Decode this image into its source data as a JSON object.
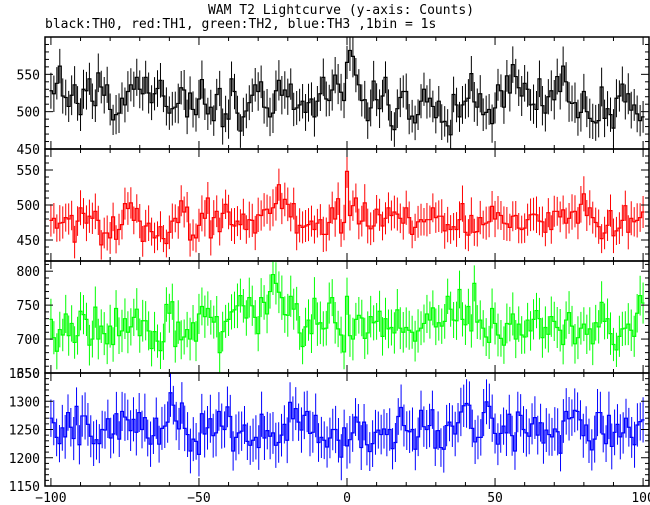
{
  "chart_data": {
    "type": "line",
    "title": "WAM T2 Lightcurve (y-axis: Counts)",
    "subtitle": "black:TH0, red:TH1, green:TH2, blue:TH3 ,1bin = 1s",
    "xlim": [
      -102,
      102
    ],
    "x_ticks": [
      -100,
      -50,
      0,
      50,
      100
    ],
    "grid": false,
    "series": [
      {
        "name": "TH0",
        "color": "#000000",
        "ylim": [
          450,
          600
        ],
        "y_ticks": [
          450,
          500,
          550
        ],
        "values": [
          528,
          524,
          538,
          561,
          521,
          519,
          507,
          522,
          536,
          511,
          496,
          530,
          528,
          544,
          514,
          508,
          552,
          533,
          522,
          536,
          503,
          489,
          496,
          498,
          518,
          509,
          527,
          536,
          530,
          546,
          530,
          524,
          546,
          525,
          512,
          524,
          531,
          542,
          521,
          507,
          498,
          504,
          506,
          511,
          532,
          529,
          493,
          525,
          503,
          496,
          517,
          543,
          510,
          497,
          506,
          488,
          523,
          531,
          480,
          497,
          490,
          544,
          527,
          498,
          474,
          493,
          501,
          512,
          522,
          536,
          527,
          540,
          506,
          505,
          493,
          498,
          528,
          542,
          522,
          529,
          520,
          537,
          503,
          505,
          509,
          514,
          499,
          512,
          517,
          493,
          514,
          524,
          546,
          517,
          515,
          529,
          549,
          537,
          526,
          515,
          566,
          582,
          574,
          549,
          536,
          515,
          516,
          488,
          505,
          541,
          516,
          504,
          521,
          546,
          509,
          481,
          476,
          504,
          519,
          527,
          527,
          490,
          494,
          485,
          496,
          514,
          530,
          513,
          518,
          507,
          492,
          514,
          486,
          487,
          481,
          469,
          523,
          509,
          493,
          509,
          514,
          518,
          551,
          513,
          506,
          524,
          496,
          499,
          503,
          484,
          505,
          536,
          528,
          506,
          548,
          525,
          563,
          547,
          532,
          521,
          538,
          530,
          509,
          510,
          503,
          544,
          508,
          498,
          520,
          528,
          516,
          547,
          527,
          561,
          540,
          513,
          511,
          512,
          492,
          499,
          527,
          500,
          491,
          487,
          485,
          488,
          533,
          491,
          504,
          496,
          478,
          518,
          521,
          537,
          513,
          524,
          502,
          509,
          497,
          488,
          493
        ]
      },
      {
        "name": "TH1",
        "color": "#ff0000",
        "ylim": [
          420,
          580
        ],
        "y_ticks": [
          450,
          500,
          550
        ],
        "values": [
          478,
          481,
          467,
          474,
          475,
          482,
          480,
          485,
          447,
          477,
          496,
          488,
          474,
          484,
          481,
          491,
          478,
          443,
          460,
          460,
          453,
          483,
          451,
          465,
          472,
          502,
          495,
          503,
          478,
          495,
          477,
          448,
          470,
          474,
          462,
          453,
          456,
          469,
          452,
          445,
          461,
          477,
          481,
          475,
          506,
          490,
          497,
          450,
          457,
          453,
          471,
          488,
          481,
          510,
          453,
          482,
          491,
          462,
          488,
          501,
          490,
          472,
          470,
          477,
          472,
          487,
          465,
          479,
          478,
          460,
          486,
          485,
          493,
          494,
          488,
          496,
          502,
          529,
          495,
          508,
          501,
          483,
          502,
          460,
          471,
          468,
          470,
          472,
          477,
          465,
          474,
          479,
          458,
          458,
          475,
          496,
          480,
          509,
          460,
          475,
          548,
          485,
          499,
          510,
          473,
          477,
          503,
          470,
          466,
          470,
          494,
          486,
          470,
          481,
          496,
          485,
          490,
          487,
          481,
          474,
          496,
          482,
          458,
          468,
          476,
          479,
          476,
          479,
          479,
          496,
          482,
          484,
          484,
          463,
          472,
          465,
          469,
          465,
          479,
          502,
          461,
          457,
          485,
          461,
          462,
          482,
          472,
          474,
          476,
          498,
          480,
          489,
          485,
          474,
          473,
          468,
          484,
          485,
          467,
          465,
          467,
          479,
          486,
          487,
          486,
          477,
          476,
          461,
          489,
          465,
          491,
          491,
          483,
          493,
          474,
          481,
          490,
          491,
          474,
          501,
          516,
          485,
          496,
          482,
          475,
          469,
          452,
          460,
          471,
          492,
          456,
          463,
          467,
          478,
          499,
          461,
          481,
          476,
          478,
          482,
          490
        ]
      },
      {
        "name": "TH2",
        "color": "#00ff00",
        "ylim": [
          650,
          815
        ],
        "y_ticks": [
          650,
          700,
          750,
          800
        ],
        "values": [
          729,
          702,
          682,
          714,
          706,
          737,
          705,
          723,
          695,
          705,
          741,
          736,
          729,
          691,
          700,
          747,
          700,
          719,
          708,
          693,
          719,
          692,
          745,
          705,
          712,
          730,
          710,
          718,
          732,
          744,
          705,
          727,
          727,
          712,
          686,
          711,
          697,
          683,
          696,
          751,
          738,
          755,
          689,
          725,
          699,
          703,
          714,
          700,
          724,
          697,
          737,
          748,
          733,
          745,
          732,
          725,
          733,
          680,
          711,
          726,
          729,
          740,
          743,
          749,
          764,
          749,
          731,
          761,
          749,
          732,
          708,
          761,
          754,
          737,
          770,
          795,
          782,
          769,
          761,
          736,
          735,
          763,
          744,
          752,
          709,
          689,
          718,
          728,
          708,
          760,
          722,
          724,
          715,
          716,
          753,
          761,
          724,
          715,
          706,
          681,
          763,
          705,
          700,
          729,
          735,
          731,
          701,
          709,
          733,
          724,
          726,
          741,
          704,
          730,
          715,
          717,
          709,
          743,
          716,
          710,
          717,
          713,
          710,
          697,
          712,
          716,
          723,
          737,
          728,
          746,
          718,
          724,
          719,
          726,
          763,
          744,
          728,
          727,
          773,
          729,
          721,
          748,
          712,
          782,
          725,
          728,
          716,
          703,
          695,
          745,
          723,
          706,
          701,
          691,
          723,
          722,
          737,
          700,
          722,
          706,
          703,
          728,
          712,
          729,
          742,
          730,
          702,
          717,
          707,
          733,
          726,
          717,
          713,
          692,
          728,
          739,
          719,
          693,
          702,
          716,
          722,
          707,
          715,
          693,
          724,
          718,
          754,
          726,
          730,
          708,
          692,
          684,
          704,
          715,
          716,
          722,
          713,
          704,
          738,
          764,
          753
        ]
      },
      {
        "name": "TH3",
        "color": "#0000ff",
        "ylim": [
          1150,
          1350
        ],
        "y_ticks": [
          1150,
          1200,
          1250,
          1300,
          1350
        ],
        "values": [
          1270,
          1262,
          1236,
          1225,
          1253,
          1237,
          1280,
          1254,
          1234,
          1291,
          1223,
          1274,
          1274,
          1259,
          1238,
          1225,
          1232,
          1225,
          1250,
          1249,
          1269,
          1235,
          1242,
          1278,
          1233,
          1282,
          1272,
          1267,
          1248,
          1268,
          1245,
          1280,
          1250,
          1271,
          1235,
          1224,
          1239,
          1270,
          1224,
          1252,
          1256,
          1263,
          1315,
          1293,
          1265,
          1251,
          1297,
          1252,
          1241,
          1212,
          1233,
          1229,
          1206,
          1278,
          1242,
          1253,
          1269,
          1239,
          1244,
          1282,
          1256,
          1250,
          1290,
          1273,
          1212,
          1236,
          1244,
          1247,
          1258,
          1229,
          1222,
          1231,
          1236,
          1218,
          1277,
          1235,
          1248,
          1238,
          1244,
          1222,
          1227,
          1240,
          1259,
          1231,
          1298,
          1269,
          1287,
          1263,
          1249,
          1275,
          1282,
          1243,
          1245,
          1275,
          1227,
          1236,
          1231,
          1219,
          1235,
          1250,
          1250,
          1231,
          1201,
          1253,
          1221,
          1232,
          1244,
          1272,
          1263,
          1218,
          1263,
          1223,
          1211,
          1225,
          1245,
          1249,
          1241,
          1251,
          1241,
          1250,
          1216,
          1227,
          1273,
          1289,
          1257,
          1248,
          1246,
          1250,
          1215,
          1237,
          1284,
          1255,
          1250,
          1257,
          1285,
          1217,
          1248,
          1218,
          1215,
          1257,
          1263,
          1256,
          1242,
          1262,
          1281,
          1292,
          1296,
          1293,
          1252,
          1228,
          1236,
          1236,
          1280,
          1299,
          1291,
          1270,
          1243,
          1224,
          1243,
          1256,
          1244,
          1277,
          1239,
          1212,
          1281,
          1275,
          1250,
          1244,
          1238,
          1260,
          1271,
          1240,
          1262,
          1226,
          1249,
          1241,
          1237,
          1251,
          1246,
          1208,
          1265,
          1282,
          1269,
          1271,
          1284,
          1282,
          1267,
          1239,
          1258,
          1230,
          1214,
          1233,
          1280,
          1280,
          1242,
          1225,
          1275,
          1220,
          1245,
          1259,
          1237,
          1244,
          1270,
          1254,
          1236,
          1223,
          1258,
          1264,
          1267
        ]
      }
    ]
  }
}
